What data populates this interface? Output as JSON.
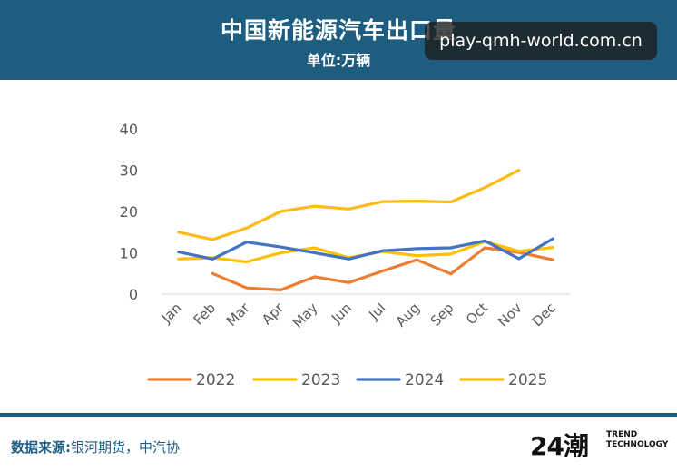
{
  "header": {
    "title": "中国新能源汽车出口量",
    "subtitle": "单位:万辆"
  },
  "watermark": {
    "text": "play-qmh-world.com.cn"
  },
  "chart_data": {
    "type": "line",
    "title": "中国新能源汽车出口量",
    "subtitle": "单位:万辆",
    "categories": [
      "Jan",
      "Feb",
      "Mar",
      "Apr",
      "May",
      "Jun",
      "Jul",
      "Aug",
      "Sep",
      "Oct",
      "Nov",
      "Dec"
    ],
    "ylim": [
      0,
      40
    ],
    "yticks": [
      0,
      10,
      20,
      30,
      40
    ],
    "grid": false,
    "legend": "bottom",
    "series": [
      {
        "name": "2022",
        "color": "#ed7d31",
        "values": [
          null,
          5.0,
          1.5,
          1.0,
          4.2,
          2.8,
          5.6,
          8.3,
          4.9,
          11.2,
          10.1,
          8.3
        ]
      },
      {
        "name": "2023",
        "color": "#ffc000",
        "values": [
          8.5,
          8.8,
          7.8,
          10.0,
          11.2,
          8.8,
          10.3,
          9.3,
          9.7,
          12.7,
          10.4,
          11.3
        ]
      },
      {
        "name": "2024",
        "color": "#4472c4",
        "values": [
          10.2,
          8.5,
          12.6,
          11.4,
          10.0,
          8.5,
          10.5,
          11.0,
          11.2,
          12.9,
          8.6,
          13.4
        ]
      },
      {
        "name": "2025",
        "color": "#fdbb13",
        "values": [
          15.0,
          13.2,
          16.0,
          20.0,
          21.3,
          20.6,
          22.4,
          22.5,
          22.3,
          25.8,
          30.0,
          null
        ]
      }
    ]
  },
  "footer": {
    "source_label": "数据来源:",
    "source_text": "银河期货，中汽协",
    "logo_main": "24潮",
    "logo_sub1": "TREND",
    "logo_sub2": "TECHNOLOGY"
  }
}
